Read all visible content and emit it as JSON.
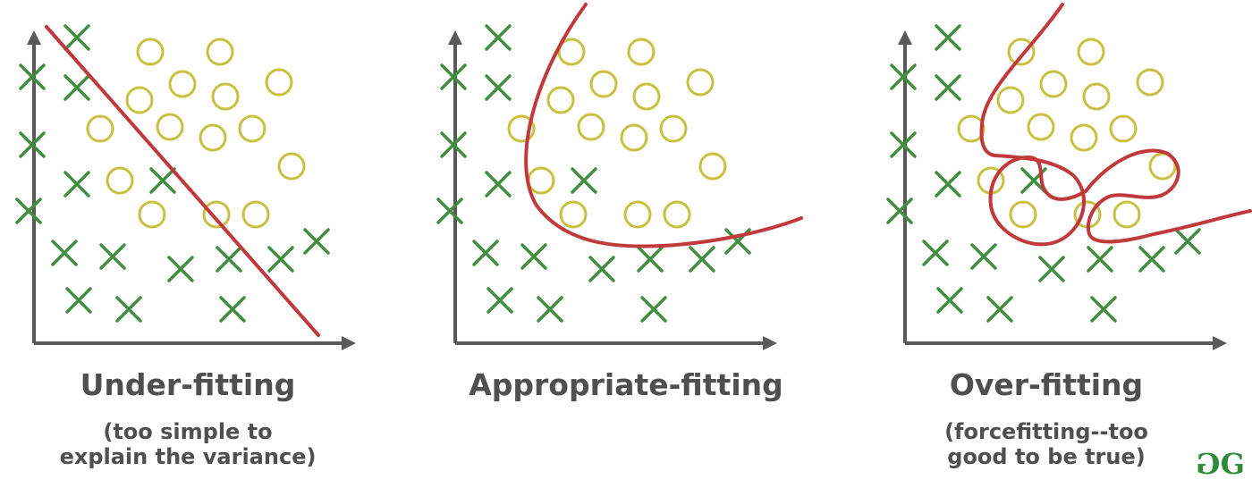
{
  "colors": {
    "axis": "#595959",
    "cross": "#3f8f3f",
    "circle": "#c8c040",
    "curve": "#c0393b",
    "text": "#4f4f4f",
    "logo": "#2e8b3a"
  },
  "panels": [
    {
      "id": "under",
      "title": "Under-fitting",
      "subtitle": [
        "(too simple to",
        "explain the variance)"
      ]
    },
    {
      "id": "appropriate",
      "title": "Appropriate-fitting",
      "subtitle": []
    },
    {
      "id": "over",
      "title": "Over-fitting",
      "subtitle": [
        "(forcefitting--too",
        "good to be true)"
      ]
    }
  ],
  "logo": {
    "text": "GG",
    "icon": "geeksforgeeks-logo-icon"
  }
}
